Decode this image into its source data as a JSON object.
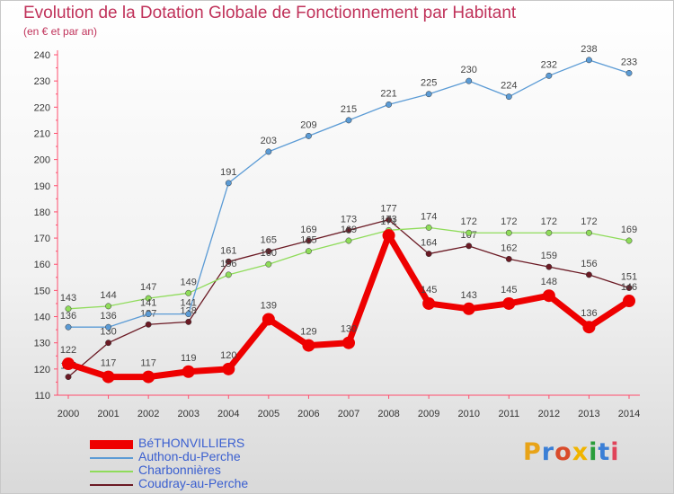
{
  "header": {
    "title": "Evolution de la Dotation Globale de Fonctionnement par Habitant",
    "subtitle": "(en € et par an)"
  },
  "logo": {
    "text": "Proxiti",
    "colors": [
      "#e8a317",
      "#3b7fd6",
      "#d94b2b",
      "#f0b400",
      "#2a9d3a",
      "#3b7fd6",
      "#e0445a"
    ]
  },
  "chart_data": {
    "type": "line",
    "title": "Evolution de la Dotation Globale de Fonctionnement par Habitant",
    "subtitle": "(en € et par an)",
    "x": [
      "2000",
      "2001",
      "2002",
      "2003",
      "2004",
      "2005",
      "2006",
      "2007",
      "2008",
      "2009",
      "2010",
      "2011",
      "2012",
      "2013",
      "2014"
    ],
    "ylim": [
      110,
      240
    ],
    "yticks": [
      110,
      120,
      130,
      140,
      150,
      160,
      170,
      180,
      190,
      200,
      210,
      220,
      230,
      240
    ],
    "grid": false,
    "legend_position": "bottom-left",
    "series": [
      {
        "name": "Coudray-au-Perche",
        "color": "#6b1a24",
        "values": [
          117,
          130,
          137,
          138,
          161,
          165,
          169,
          173,
          177,
          164,
          167,
          162,
          159,
          156,
          151
        ]
      },
      {
        "name": "Charbonnières",
        "color": "#8fdc5a",
        "values": [
          143,
          144,
          147,
          149,
          156,
          160,
          165,
          169,
          173,
          174,
          172,
          172,
          172,
          172,
          169
        ]
      },
      {
        "name": "Authon-du-Perche",
        "color": "#5b9bd5",
        "values": [
          136,
          136,
          141,
          141,
          191,
          203,
          209,
          215,
          221,
          225,
          230,
          224,
          232,
          238,
          233
        ]
      },
      {
        "name": "BéTHONVILLIERS",
        "color": "#ee0000",
        "values": [
          122,
          117,
          117,
          119,
          120,
          139,
          129,
          130,
          171,
          145,
          143,
          145,
          148,
          136,
          146
        ]
      }
    ]
  },
  "legend": {
    "items": [
      {
        "label": "BéTHONVILLIERS",
        "color": "#ee0000"
      },
      {
        "label": "Authon-du-Perche",
        "color": "#5b9bd5"
      },
      {
        "label": "Charbonnières",
        "color": "#8fdc5a"
      },
      {
        "label": "Coudray-au-Perche",
        "color": "#6b1a24"
      }
    ]
  }
}
